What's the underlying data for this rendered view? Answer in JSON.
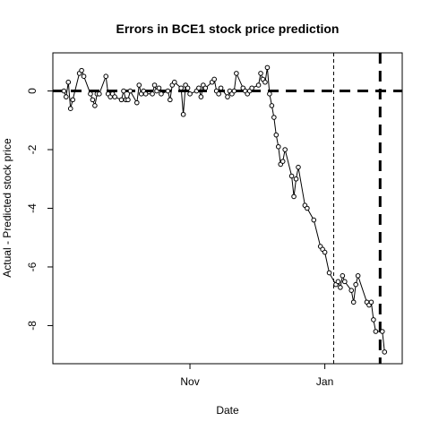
{
  "chart_data": {
    "type": "scatter",
    "title": "Errors in BCE1 stock price prediction",
    "xlabel": "Date",
    "ylabel": "Actual - Predicted stock price",
    "x_unit": "date",
    "xlim": [
      "2019-08-31",
      "2020-02-05"
    ],
    "ylim": [
      -9.3,
      1.3
    ],
    "x_ticks": [
      {
        "date": "2019-11-01",
        "label": "Nov"
      },
      {
        "date": "2020-01-01",
        "label": "Jan"
      }
    ],
    "y_ticks": [
      {
        "value": 0,
        "label": "0"
      },
      {
        "value": -2,
        "label": "-2"
      },
      {
        "value": -4,
        "label": "-4"
      },
      {
        "value": -6,
        "label": "-6"
      },
      {
        "value": -8,
        "label": "-8"
      }
    ],
    "grid": false,
    "legend": "none",
    "reference_lines": [
      {
        "axis": "y",
        "value": 0,
        "style": "thick-dashed"
      },
      {
        "axis": "x",
        "date": "2020-01-05",
        "style": "thin-dashed"
      },
      {
        "axis": "x",
        "date": "2020-01-26",
        "style": "thick-dashed"
      }
    ],
    "colors": {
      "points": "#000000",
      "lines": "#000000",
      "background": "#ffffff"
    },
    "series": [
      {
        "points": [
          {
            "x": "2019-09-05",
            "y": 0.0
          },
          {
            "x": "2019-09-06",
            "y": -0.2
          },
          {
            "x": "2019-09-07",
            "y": 0.3
          },
          {
            "x": "2019-09-08",
            "y": -0.6
          },
          {
            "x": "2019-09-09",
            "y": -0.3
          },
          {
            "x": "2019-09-12",
            "y": 0.6
          },
          {
            "x": "2019-09-13",
            "y": 0.7
          },
          {
            "x": "2019-09-14",
            "y": 0.5
          },
          {
            "x": "2019-09-17",
            "y": -0.1
          },
          {
            "x": "2019-09-18",
            "y": -0.3
          },
          {
            "x": "2019-09-19",
            "y": -0.5
          },
          {
            "x": "2019-09-20",
            "y": -0.1
          },
          {
            "x": "2019-09-21",
            "y": -0.1
          },
          {
            "x": "2019-09-24",
            "y": 0.5
          },
          {
            "x": "2019-09-25",
            "y": -0.1
          },
          {
            "x": "2019-09-26",
            "y": -0.2
          },
          {
            "x": "2019-09-27",
            "y": -0.1
          },
          {
            "x": "2019-09-28",
            "y": -0.2
          },
          {
            "x": "2019-10-01",
            "y": -0.3
          },
          {
            "x": "2019-10-02",
            "y": 0.0
          },
          {
            "x": "2019-10-03",
            "y": -0.3
          },
          {
            "x": "2019-10-04",
            "y": -0.3
          },
          {
            "x": "2019-10-05",
            "y": 0.0
          },
          {
            "x": "2019-10-08",
            "y": -0.4
          },
          {
            "x": "2019-10-09",
            "y": 0.2
          },
          {
            "x": "2019-10-10",
            "y": -0.1
          },
          {
            "x": "2019-10-11",
            "y": 0.0
          },
          {
            "x": "2019-10-12",
            "y": -0.1
          },
          {
            "x": "2019-10-15",
            "y": -0.1
          },
          {
            "x": "2019-10-16",
            "y": 0.2
          },
          {
            "x": "2019-10-17",
            "y": 0.0
          },
          {
            "x": "2019-10-18",
            "y": 0.1
          },
          {
            "x": "2019-10-19",
            "y": -0.1
          },
          {
            "x": "2019-10-22",
            "y": 0.0
          },
          {
            "x": "2019-10-23",
            "y": -0.3
          },
          {
            "x": "2019-10-24",
            "y": 0.2
          },
          {
            "x": "2019-10-25",
            "y": 0.3
          },
          {
            "x": "2019-10-28",
            "y": 0.1
          },
          {
            "x": "2019-10-29",
            "y": -0.8
          },
          {
            "x": "2019-10-30",
            "y": 0.2
          },
          {
            "x": "2019-10-31",
            "y": 0.1
          },
          {
            "x": "2019-11-01",
            "y": -0.1
          },
          {
            "x": "2019-11-04",
            "y": 0.0
          },
          {
            "x": "2019-11-05",
            "y": 0.1
          },
          {
            "x": "2019-11-06",
            "y": -0.2
          },
          {
            "x": "2019-11-07",
            "y": 0.2
          },
          {
            "x": "2019-11-08",
            "y": 0.1
          },
          {
            "x": "2019-11-11",
            "y": 0.3
          },
          {
            "x": "2019-11-12",
            "y": 0.4
          },
          {
            "x": "2019-11-13",
            "y": 0.0
          },
          {
            "x": "2019-11-14",
            "y": -0.1
          },
          {
            "x": "2019-11-15",
            "y": 0.1
          },
          {
            "x": "2019-11-18",
            "y": -0.2
          },
          {
            "x": "2019-11-19",
            "y": 0.0
          },
          {
            "x": "2019-11-20",
            "y": -0.1
          },
          {
            "x": "2019-11-21",
            "y": 0.0
          },
          {
            "x": "2019-11-22",
            "y": 0.6
          },
          {
            "x": "2019-11-25",
            "y": 0.1
          },
          {
            "x": "2019-11-26",
            "y": 0.0
          },
          {
            "x": "2019-11-27",
            "y": -0.1
          },
          {
            "x": "2019-11-28",
            "y": 0.0
          },
          {
            "x": "2019-11-29",
            "y": 0.1
          },
          {
            "x": "2019-12-02",
            "y": 0.2
          },
          {
            "x": "2019-12-03",
            "y": 0.6
          },
          {
            "x": "2019-12-04",
            "y": 0.4
          },
          {
            "x": "2019-12-05",
            "y": 0.3
          },
          {
            "x": "2019-12-06",
            "y": 0.8
          },
          {
            "x": "2019-12-07",
            "y": -0.1
          },
          {
            "x": "2019-12-08",
            "y": -0.5
          },
          {
            "x": "2019-12-09",
            "y": -0.9
          },
          {
            "x": "2019-12-10",
            "y": -1.5
          },
          {
            "x": "2019-12-11",
            "y": -1.9
          },
          {
            "x": "2019-12-12",
            "y": -2.5
          },
          {
            "x": "2019-12-13",
            "y": -2.4
          },
          {
            "x": "2019-12-14",
            "y": -2.0
          },
          {
            "x": "2019-12-17",
            "y": -2.9
          },
          {
            "x": "2019-12-18",
            "y": -3.6
          },
          {
            "x": "2019-12-19",
            "y": -3.0
          },
          {
            "x": "2019-12-20",
            "y": -2.6
          },
          {
            "x": "2019-12-23",
            "y": -3.9
          },
          {
            "x": "2019-12-24",
            "y": -4.0
          },
          {
            "x": "2019-12-27",
            "y": -4.4
          },
          {
            "x": "2019-12-30",
            "y": -5.3
          },
          {
            "x": "2019-12-31",
            "y": -5.4
          },
          {
            "x": "2020-01-01",
            "y": -5.5
          },
          {
            "x": "2020-01-03",
            "y": -6.2
          },
          {
            "x": "2020-01-06",
            "y": -6.6
          },
          {
            "x": "2020-01-07",
            "y": -6.5
          },
          {
            "x": "2020-01-08",
            "y": -6.7
          },
          {
            "x": "2020-01-09",
            "y": -6.3
          },
          {
            "x": "2020-01-10",
            "y": -6.5
          },
          {
            "x": "2020-01-13",
            "y": -6.8
          },
          {
            "x": "2020-01-14",
            "y": -7.2
          },
          {
            "x": "2020-01-15",
            "y": -6.6
          },
          {
            "x": "2020-01-16",
            "y": -6.3
          },
          {
            "x": "2020-01-20",
            "y": -7.2
          },
          {
            "x": "2020-01-21",
            "y": -7.3
          },
          {
            "x": "2020-01-22",
            "y": -7.2
          },
          {
            "x": "2020-01-23",
            "y": -7.8
          },
          {
            "x": "2020-01-24",
            "y": -8.2
          },
          {
            "x": "2020-01-27",
            "y": -8.2
          },
          {
            "x": "2020-01-28",
            "y": -8.9
          }
        ]
      }
    ]
  }
}
